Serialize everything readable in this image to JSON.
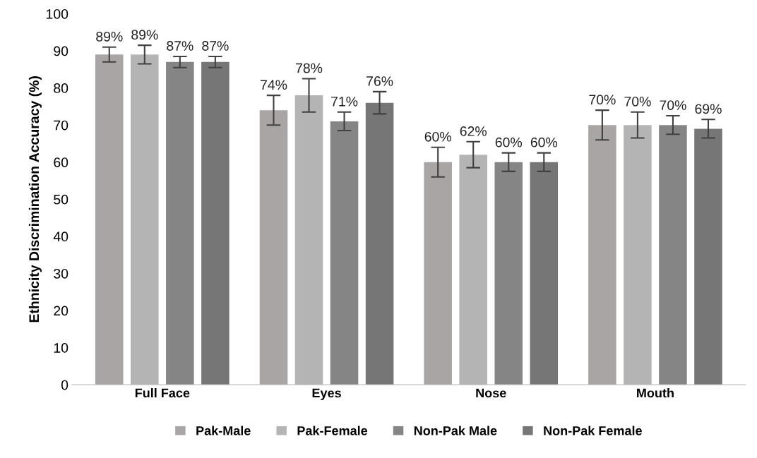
{
  "chart_data": {
    "type": "bar",
    "ylabel": "Ethnicity Discrimination Accuracy (%)",
    "categories": [
      "Full Face",
      "Eyes",
      "Nose",
      "Mouth"
    ],
    "series": [
      {
        "name": "Pak-Male",
        "color": "#a9a5a4",
        "values": [
          89,
          74,
          60,
          70
        ],
        "errors": [
          2,
          4,
          4,
          4
        ],
        "value_labels": [
          "89%",
          "74%",
          "60%",
          "70%"
        ]
      },
      {
        "name": "Pak-Female",
        "color": "#b4b4b4",
        "values": [
          89,
          78,
          62,
          70
        ],
        "errors": [
          2.5,
          4.5,
          3.5,
          3.5
        ],
        "value_labels": [
          "89%",
          "78%",
          "62%",
          "70%"
        ]
      },
      {
        "name": "Non-Pak Male",
        "color": "#858585",
        "values": [
          87,
          71,
          60,
          70
        ],
        "errors": [
          1.5,
          2.5,
          2.5,
          2.5
        ],
        "value_labels": [
          "87%",
          "71%",
          "60%",
          "70%"
        ]
      },
      {
        "name": "Non-Pak Female",
        "color": "#767676",
        "values": [
          87,
          76,
          60,
          69
        ],
        "errors": [
          1.5,
          3,
          2.5,
          2.5
        ],
        "value_labels": [
          "87%",
          "76%",
          "60%",
          "69%"
        ]
      }
    ],
    "ylim": [
      0,
      100
    ],
    "yticks": [
      0,
      10,
      20,
      30,
      40,
      50,
      60,
      70,
      80,
      90,
      100
    ],
    "grid": false,
    "legend": "bottom"
  }
}
